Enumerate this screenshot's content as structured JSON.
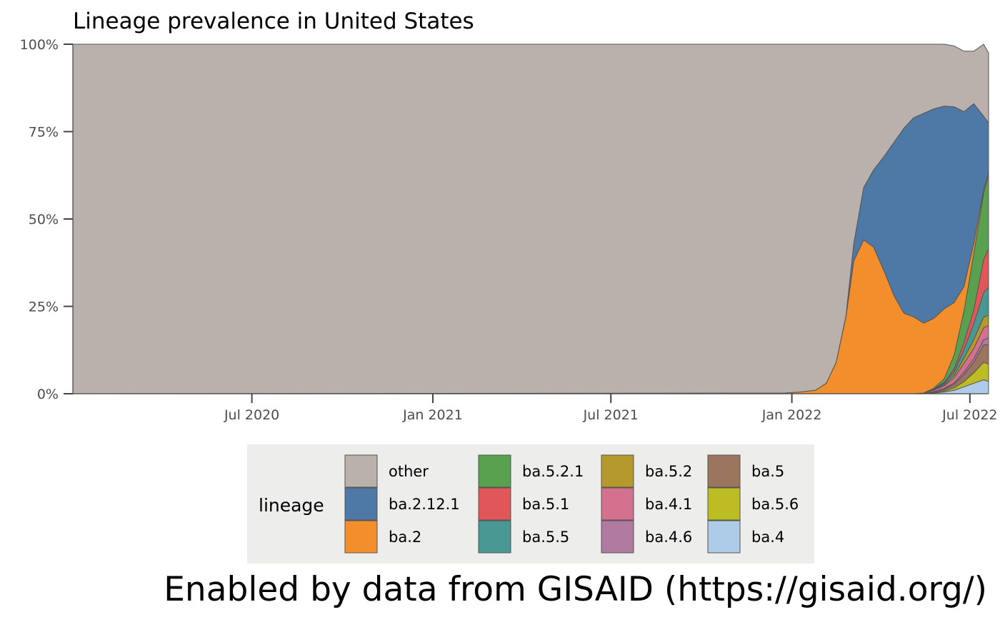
{
  "chart_data": {
    "type": "area",
    "stacked": true,
    "percent": true,
    "title": "Lineage prevalence in United States",
    "caption": "Enabled by data from GISAID (https://gisaid.org/)",
    "xlabel": "",
    "ylabel": "",
    "x_range": [
      "2020-01-01",
      "2022-07-20"
    ],
    "ylim": [
      0,
      1
    ],
    "y_ticks": [
      {
        "value": 0,
        "label": "0%"
      },
      {
        "value": 0.25,
        "label": "25%"
      },
      {
        "value": 0.5,
        "label": "50%"
      },
      {
        "value": 0.75,
        "label": "75%"
      },
      {
        "value": 1,
        "label": "100%"
      }
    ],
    "x_ticks": [
      {
        "value": "2020-07-01",
        "label": "Jul 2020"
      },
      {
        "value": "2021-01-01",
        "label": "Jan 2021"
      },
      {
        "value": "2021-07-01",
        "label": "Jul 2021"
      },
      {
        "value": "2022-01-01",
        "label": "Jan 2022"
      },
      {
        "value": "2022-07-01",
        "label": "Jul 2022"
      }
    ],
    "grid": false,
    "legend": {
      "title": "lineage",
      "placement": "bottom",
      "background": "#ededeb",
      "columns": [
        [
          "other",
          "ba.2.12.1",
          "ba.2"
        ],
        [
          "ba.5.2.1",
          "ba.5.1",
          "ba.5.5"
        ],
        [
          "ba.5.2",
          "ba.4.1",
          "ba.4.6"
        ],
        [
          "ba.5",
          "ba.5.6",
          "ba.4"
        ]
      ]
    },
    "x": [
      "2020-01-01",
      "2021-12-25",
      "2022-01-10",
      "2022-01-25",
      "2022-02-05",
      "2022-02-15",
      "2022-02-25",
      "2022-03-05",
      "2022-03-15",
      "2022-03-25",
      "2022-04-05",
      "2022-04-15",
      "2022-04-25",
      "2022-05-05",
      "2022-05-15",
      "2022-05-25",
      "2022-06-05",
      "2022-06-15",
      "2022-06-25",
      "2022-07-05",
      "2022-07-15",
      "2022-07-20"
    ],
    "series": [
      {
        "name": "ba.4",
        "color": "#aecbe8",
        "values": [
          0,
          0,
          0,
          0,
          0,
          0,
          0,
          0,
          0,
          0,
          0,
          0,
          0,
          0,
          0,
          0.002,
          0.005,
          0.01,
          0.02,
          0.03,
          0.04,
          0.035
        ]
      },
      {
        "name": "ba.5.6",
        "color": "#bcbd22",
        "values": [
          0,
          0,
          0,
          0,
          0,
          0,
          0,
          0,
          0,
          0,
          0,
          0,
          0,
          0,
          0,
          0.001,
          0.003,
          0.007,
          0.015,
          0.03,
          0.05,
          0.05
        ]
      },
      {
        "name": "ba.5",
        "color": "#9c755f",
        "values": [
          0,
          0,
          0,
          0,
          0,
          0,
          0,
          0,
          0,
          0,
          0,
          0,
          0,
          0,
          0,
          0.002,
          0.005,
          0.01,
          0.02,
          0.03,
          0.05,
          0.055
        ]
      },
      {
        "name": "ba.4.6",
        "color": "#b07aa1",
        "values": [
          0,
          0,
          0,
          0,
          0,
          0,
          0,
          0,
          0,
          0,
          0,
          0,
          0,
          0,
          0,
          0.001,
          0.002,
          0.004,
          0.007,
          0.01,
          0.014,
          0.02
        ]
      },
      {
        "name": "ba.4.1",
        "color": "#d4718f",
        "values": [
          0,
          0,
          0,
          0,
          0,
          0,
          0,
          0,
          0,
          0,
          0,
          0,
          0,
          0,
          0.002,
          0.004,
          0.008,
          0.015,
          0.025,
          0.03,
          0.035,
          0.035
        ]
      },
      {
        "name": "ba.5.2",
        "color": "#b6992d",
        "values": [
          0,
          0,
          0,
          0,
          0,
          0,
          0,
          0,
          0,
          0,
          0,
          0,
          0,
          0,
          0,
          0.001,
          0.003,
          0.007,
          0.015,
          0.025,
          0.03,
          0.03
        ]
      },
      {
        "name": "ba.5.5",
        "color": "#499894",
        "values": [
          0,
          0,
          0,
          0,
          0,
          0,
          0,
          0,
          0,
          0,
          0,
          0,
          0,
          0,
          0,
          0.001,
          0.004,
          0.01,
          0.025,
          0.045,
          0.07,
          0.08
        ]
      },
      {
        "name": "ba.5.1",
        "color": "#e15759",
        "values": [
          0,
          0,
          0,
          0,
          0,
          0,
          0,
          0,
          0,
          0,
          0,
          0,
          0,
          0,
          0,
          0.001,
          0.003,
          0.008,
          0.02,
          0.04,
          0.095,
          0.11
        ]
      },
      {
        "name": "ba.5.2.1",
        "color": "#59a14f",
        "values": [
          0,
          0,
          0,
          0,
          0,
          0,
          0,
          0,
          0,
          0,
          0,
          0,
          0,
          0,
          0,
          0.002,
          0.01,
          0.04,
          0.09,
          0.16,
          0.19,
          0.21
        ]
      },
      {
        "name": "ba.2",
        "color": "#f28e2b",
        "values": [
          0,
          0.002,
          0.005,
          0.01,
          0.03,
          0.09,
          0.22,
          0.38,
          0.44,
          0.42,
          0.35,
          0.28,
          0.23,
          0.22,
          0.2,
          0.2,
          0.2,
          0.15,
          0.07,
          0.03,
          0.01,
          0.01
        ]
      },
      {
        "name": "ba.2.12.1",
        "color": "#4e79a7",
        "values": [
          0,
          0,
          0,
          0,
          0,
          0,
          0.002,
          0.05,
          0.15,
          0.22,
          0.33,
          0.44,
          0.53,
          0.57,
          0.6,
          0.6,
          0.58,
          0.56,
          0.5,
          0.4,
          0.21,
          0.14
        ]
      },
      {
        "name": "other",
        "color": "#bab0ac",
        "values": [
          1,
          0.998,
          0.995,
          0.99,
          0.97,
          0.91,
          0.778,
          0.57,
          0.41,
          0.36,
          0.32,
          0.28,
          0.24,
          0.21,
          0.198,
          0.185,
          0.177,
          0.174,
          0.173,
          0.15,
          0.206,
          0.2
        ]
      }
    ]
  }
}
